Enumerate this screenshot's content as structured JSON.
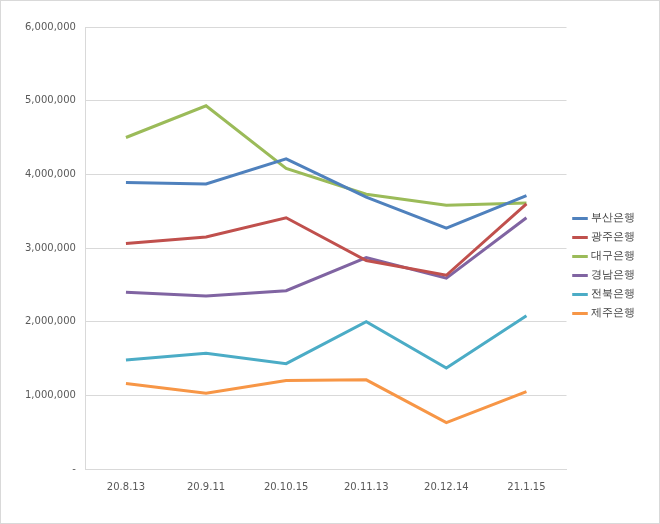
{
  "chart_data": {
    "type": "line",
    "categories": [
      "20.8.13",
      "20.9.11",
      "20.10.15",
      "20.11.13",
      "20.12.14",
      "21.1.15"
    ],
    "series": [
      {
        "name": "부산은행",
        "color": "#4f81bd",
        "values": [
          3890000,
          3870000,
          4210000,
          3690000,
          3270000,
          3710000
        ]
      },
      {
        "name": "광주은행",
        "color": "#c0504d",
        "values": [
          3060000,
          3150000,
          3410000,
          2830000,
          2630000,
          3600000
        ]
      },
      {
        "name": "대구은행",
        "color": "#9bbb59",
        "values": [
          4500000,
          4930000,
          4080000,
          3730000,
          3580000,
          3610000
        ]
      },
      {
        "name": "경남은행",
        "color": "#8064a2",
        "values": [
          2400000,
          2350000,
          2420000,
          2870000,
          2590000,
          3410000
        ]
      },
      {
        "name": "전북은행",
        "color": "#4bacc6",
        "values": [
          1480000,
          1570000,
          1430000,
          2000000,
          1370000,
          2080000
        ]
      },
      {
        "name": "제주은행",
        "color": "#f79646",
        "values": [
          1160000,
          1030000,
          1200000,
          1210000,
          630000,
          1050000
        ]
      }
    ],
    "ylim": [
      0,
      6000000
    ],
    "yticks": [
      {
        "value": 0,
        "label": "-"
      },
      {
        "value": 1000000,
        "label": "1,000,000"
      },
      {
        "value": 2000000,
        "label": "2,000,000"
      },
      {
        "value": 3000000,
        "label": "3,000,000"
      },
      {
        "value": 4000000,
        "label": "4,000,000"
      },
      {
        "value": 5000000,
        "label": "5,000,000"
      },
      {
        "value": 6000000,
        "label": "6,000,000"
      }
    ],
    "grid": true,
    "legend": "right"
  }
}
